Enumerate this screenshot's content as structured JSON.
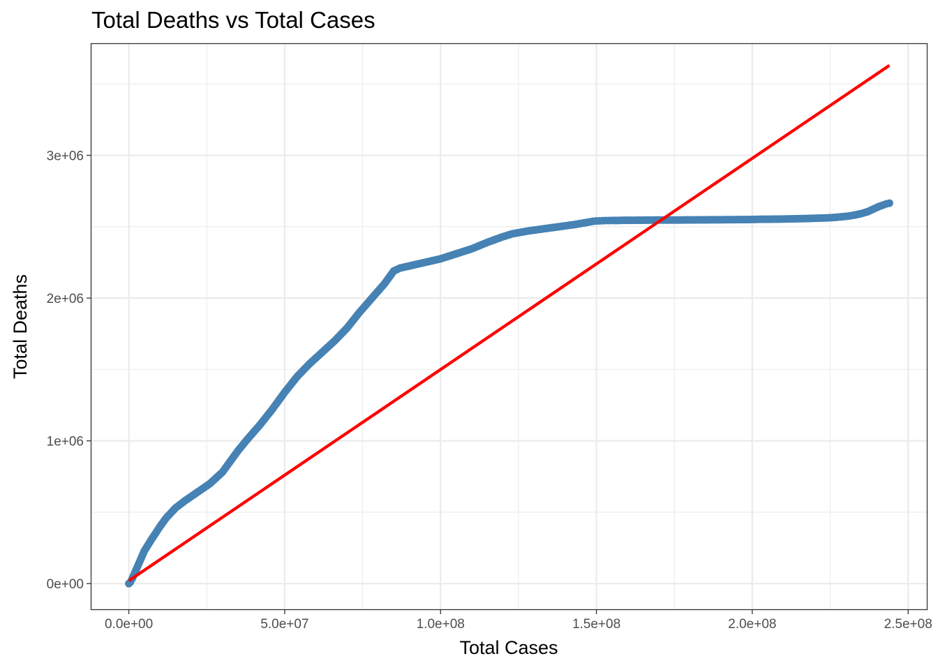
{
  "chart_data": {
    "type": "scatter",
    "title": "Total Deaths vs Total Cases",
    "xlabel": "Total Cases",
    "ylabel": "Total Deaths",
    "xlim": [
      -12000000,
      256000000
    ],
    "ylim": [
      -180000,
      3780000
    ],
    "x_ticks": [
      {
        "value": 0,
        "label": "0.0e+00"
      },
      {
        "value": 50000000,
        "label": "5.0e+07"
      },
      {
        "value": 100000000,
        "label": "1.0e+08"
      },
      {
        "value": 150000000,
        "label": "1.5e+08"
      },
      {
        "value": 200000000,
        "label": "2.0e+08"
      },
      {
        "value": 250000000,
        "label": "2.5e+08"
      }
    ],
    "y_ticks": [
      {
        "value": 0,
        "label": "0e+00"
      },
      {
        "value": 1000000,
        "label": "1e+06"
      },
      {
        "value": 2000000,
        "label": "2e+06"
      },
      {
        "value": 3000000,
        "label": "3e+06"
      }
    ],
    "grid": true,
    "series": [
      {
        "mark": "points",
        "color": "#4682B4",
        "points": [
          [
            0,
            0
          ],
          [
            500000,
            10000
          ],
          [
            1000000,
            30000
          ],
          [
            2000000,
            80000
          ],
          [
            3000000,
            130000
          ],
          [
            4000000,
            180000
          ],
          [
            5000000,
            230000
          ],
          [
            7000000,
            300000
          ],
          [
            10000000,
            400000
          ],
          [
            12000000,
            460000
          ],
          [
            15000000,
            530000
          ],
          [
            18000000,
            580000
          ],
          [
            22000000,
            640000
          ],
          [
            26000000,
            700000
          ],
          [
            30000000,
            780000
          ],
          [
            32000000,
            840000
          ],
          [
            35000000,
            930000
          ],
          [
            38000000,
            1010000
          ],
          [
            42000000,
            1110000
          ],
          [
            46000000,
            1220000
          ],
          [
            50000000,
            1340000
          ],
          [
            54000000,
            1450000
          ],
          [
            58000000,
            1540000
          ],
          [
            62000000,
            1620000
          ],
          [
            66000000,
            1700000
          ],
          [
            70000000,
            1790000
          ],
          [
            74000000,
            1900000
          ],
          [
            78000000,
            2000000
          ],
          [
            82000000,
            2100000
          ],
          [
            84000000,
            2160000
          ],
          [
            85000000,
            2190000
          ],
          [
            87000000,
            2210000
          ],
          [
            90000000,
            2225000
          ],
          [
            95000000,
            2250000
          ],
          [
            100000000,
            2275000
          ],
          [
            105000000,
            2310000
          ],
          [
            110000000,
            2345000
          ],
          [
            115000000,
            2390000
          ],
          [
            120000000,
            2430000
          ],
          [
            123000000,
            2450000
          ],
          [
            128000000,
            2470000
          ],
          [
            133000000,
            2485000
          ],
          [
            138000000,
            2500000
          ],
          [
            143000000,
            2515000
          ],
          [
            147000000,
            2530000
          ],
          [
            149000000,
            2538000
          ],
          [
            150000000,
            2540000
          ],
          [
            151000000,
            2541000
          ],
          [
            152000000,
            2542000
          ],
          [
            153000000,
            2543000
          ],
          [
            154000000,
            2543000
          ],
          [
            155000000,
            2544000
          ],
          [
            157000000,
            2544000
          ],
          [
            159000000,
            2545000
          ],
          [
            162000000,
            2545000
          ],
          [
            166000000,
            2546000
          ],
          [
            171000000,
            2547000
          ],
          [
            177000000,
            2547000
          ],
          [
            184000000,
            2548000
          ],
          [
            191000000,
            2549000
          ],
          [
            198000000,
            2550000
          ],
          [
            203000000,
            2552000
          ],
          [
            208000000,
            2553000
          ],
          [
            213000000,
            2555000
          ],
          [
            217000000,
            2557000
          ],
          [
            220000000,
            2559000
          ],
          [
            223000000,
            2561000
          ],
          [
            225000000,
            2563000
          ],
          [
            227000000,
            2566000
          ],
          [
            229000000,
            2570000
          ],
          [
            231000000,
            2575000
          ],
          [
            233000000,
            2582000
          ],
          [
            235000000,
            2592000
          ],
          [
            237000000,
            2605000
          ],
          [
            239000000,
            2625000
          ],
          [
            240500000,
            2640000
          ],
          [
            242000000,
            2652000
          ],
          [
            243000000,
            2660000
          ],
          [
            244000000,
            2665000
          ]
        ]
      },
      {
        "mark": "line",
        "color": "#FF0000",
        "points": [
          [
            0,
            20000
          ],
          [
            244000000,
            3630000
          ]
        ]
      }
    ]
  }
}
